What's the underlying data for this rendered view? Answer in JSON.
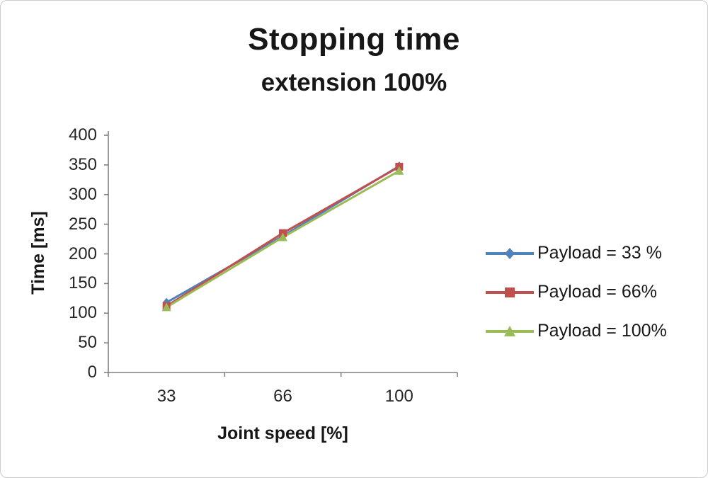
{
  "chart_data": {
    "type": "line",
    "title": "Stopping time",
    "subtitle": "extension 100%",
    "xlabel": "Joint speed [%]",
    "ylabel": "Time [ms]",
    "categories": [
      "33",
      "66",
      "100"
    ],
    "y_ticks": [
      400,
      350,
      300,
      250,
      200,
      150,
      100,
      50,
      0
    ],
    "ylim": [
      0,
      400
    ],
    "grid": false,
    "legend_position": "right",
    "axis_color": "#808080",
    "series": [
      {
        "name": "Payload = 33 %",
        "values": [
          118,
          230,
          348
        ],
        "color": "#4F81BD",
        "marker": "diamond"
      },
      {
        "name": "Payload =  66%",
        "values": [
          112,
          235,
          347
        ],
        "color": "#C0504D",
        "marker": "square"
      },
      {
        "name": "Payload =  100%",
        "values": [
          110,
          228,
          340
        ],
        "color": "#9BBB59",
        "marker": "triangle"
      }
    ]
  }
}
